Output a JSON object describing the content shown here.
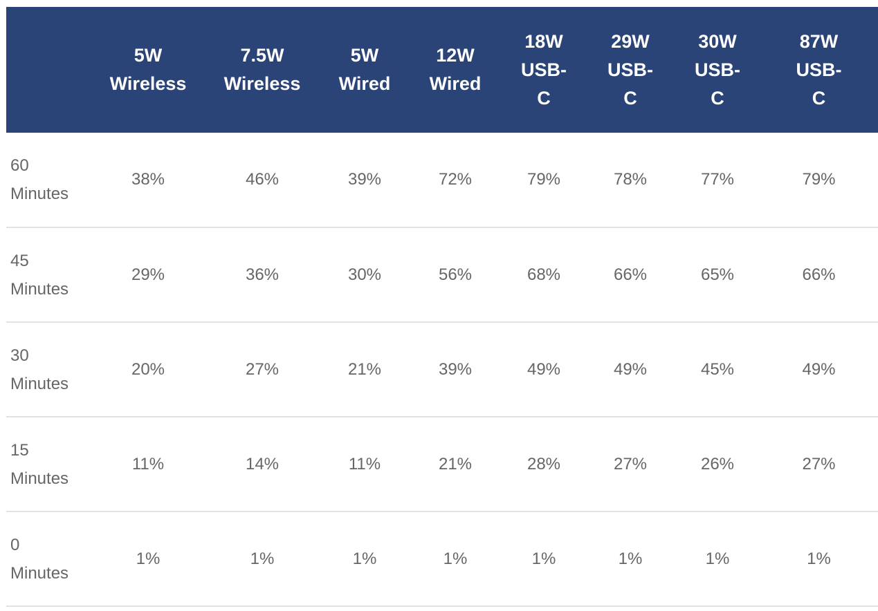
{
  "chart_data": {
    "type": "table",
    "columns": [
      {
        "lines": [
          "5W",
          "Wireless"
        ]
      },
      {
        "lines": [
          "7.5W",
          "Wireless"
        ]
      },
      {
        "lines": [
          "5W",
          "Wired"
        ]
      },
      {
        "lines": [
          "12W",
          "Wired"
        ]
      },
      {
        "lines": [
          "18W",
          "USB-",
          "C"
        ]
      },
      {
        "lines": [
          "29W",
          "USB-",
          "C"
        ]
      },
      {
        "lines": [
          "30W",
          "USB-",
          "C"
        ]
      },
      {
        "lines": [
          "87W",
          "USB-",
          "C"
        ]
      }
    ],
    "rows": [
      {
        "label_lines": [
          "60",
          "Minutes"
        ],
        "values": [
          "38%",
          "46%",
          "39%",
          "72%",
          "79%",
          "78%",
          "77%",
          "79%"
        ]
      },
      {
        "label_lines": [
          "45",
          "Minutes"
        ],
        "values": [
          "29%",
          "36%",
          "30%",
          "56%",
          "68%",
          "66%",
          "65%",
          "66%"
        ]
      },
      {
        "label_lines": [
          "30",
          "Minutes"
        ],
        "values": [
          "20%",
          "27%",
          "21%",
          "39%",
          "49%",
          "49%",
          "45%",
          "49%"
        ]
      },
      {
        "label_lines": [
          "15",
          "Minutes"
        ],
        "values": [
          "11%",
          "14%",
          "11%",
          "21%",
          "28%",
          "27%",
          "26%",
          "27%"
        ]
      },
      {
        "label_lines": [
          "0",
          "Minutes"
        ],
        "values": [
          "1%",
          "1%",
          "1%",
          "1%",
          "1%",
          "1%",
          "1%",
          "1%"
        ]
      }
    ]
  },
  "colors": {
    "header_background": "#2b4478",
    "header_text": "#ffffff",
    "cell_text": "#666666",
    "row_divider": "#e2e2e2"
  }
}
